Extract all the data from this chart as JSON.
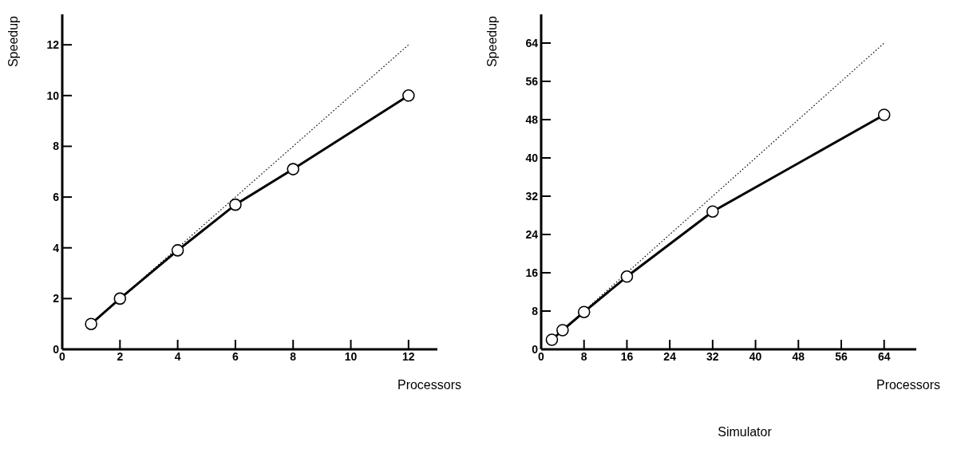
{
  "chart_data": [
    {
      "type": "line",
      "xlabel": "Processors",
      "ylabel": "Speedup",
      "xlim": [
        0,
        13
      ],
      "ylim": [
        0,
        13.2
      ],
      "xticks": [
        0,
        2,
        4,
        6,
        8,
        10,
        12
      ],
      "yticks": [
        0,
        2,
        4,
        6,
        8,
        10,
        12
      ],
      "grid": false,
      "series": [
        {
          "x": [
            1,
            12
          ],
          "values": [
            1,
            12
          ],
          "color": "#000000",
          "line_style": "dotted"
        },
        {
          "x": [
            1,
            2,
            4,
            6,
            8,
            12
          ],
          "values": [
            1,
            2,
            3.9,
            5.7,
            7.1,
            10
          ],
          "color": "#000000",
          "marker": "circle",
          "line_style": "solid"
        }
      ]
    },
    {
      "type": "line",
      "title": "Simulator",
      "xlabel": "Processors",
      "ylabel": "Speedup",
      "xlim": [
        0,
        70
      ],
      "ylim": [
        0,
        70
      ],
      "xticks": [
        0,
        8,
        16,
        24,
        32,
        40,
        48,
        56,
        64
      ],
      "yticks": [
        0,
        8,
        16,
        24,
        32,
        40,
        48,
        56,
        64
      ],
      "grid": false,
      "series": [
        {
          "x": [
            2,
            64
          ],
          "values": [
            2,
            64
          ],
          "color": "#000000",
          "line_style": "dotted"
        },
        {
          "x": [
            2,
            4,
            8,
            16,
            32,
            64
          ],
          "values": [
            2,
            4,
            7.8,
            15.2,
            28.8,
            49
          ],
          "color": "#000000",
          "marker": "circle",
          "line_style": "solid"
        }
      ]
    }
  ]
}
